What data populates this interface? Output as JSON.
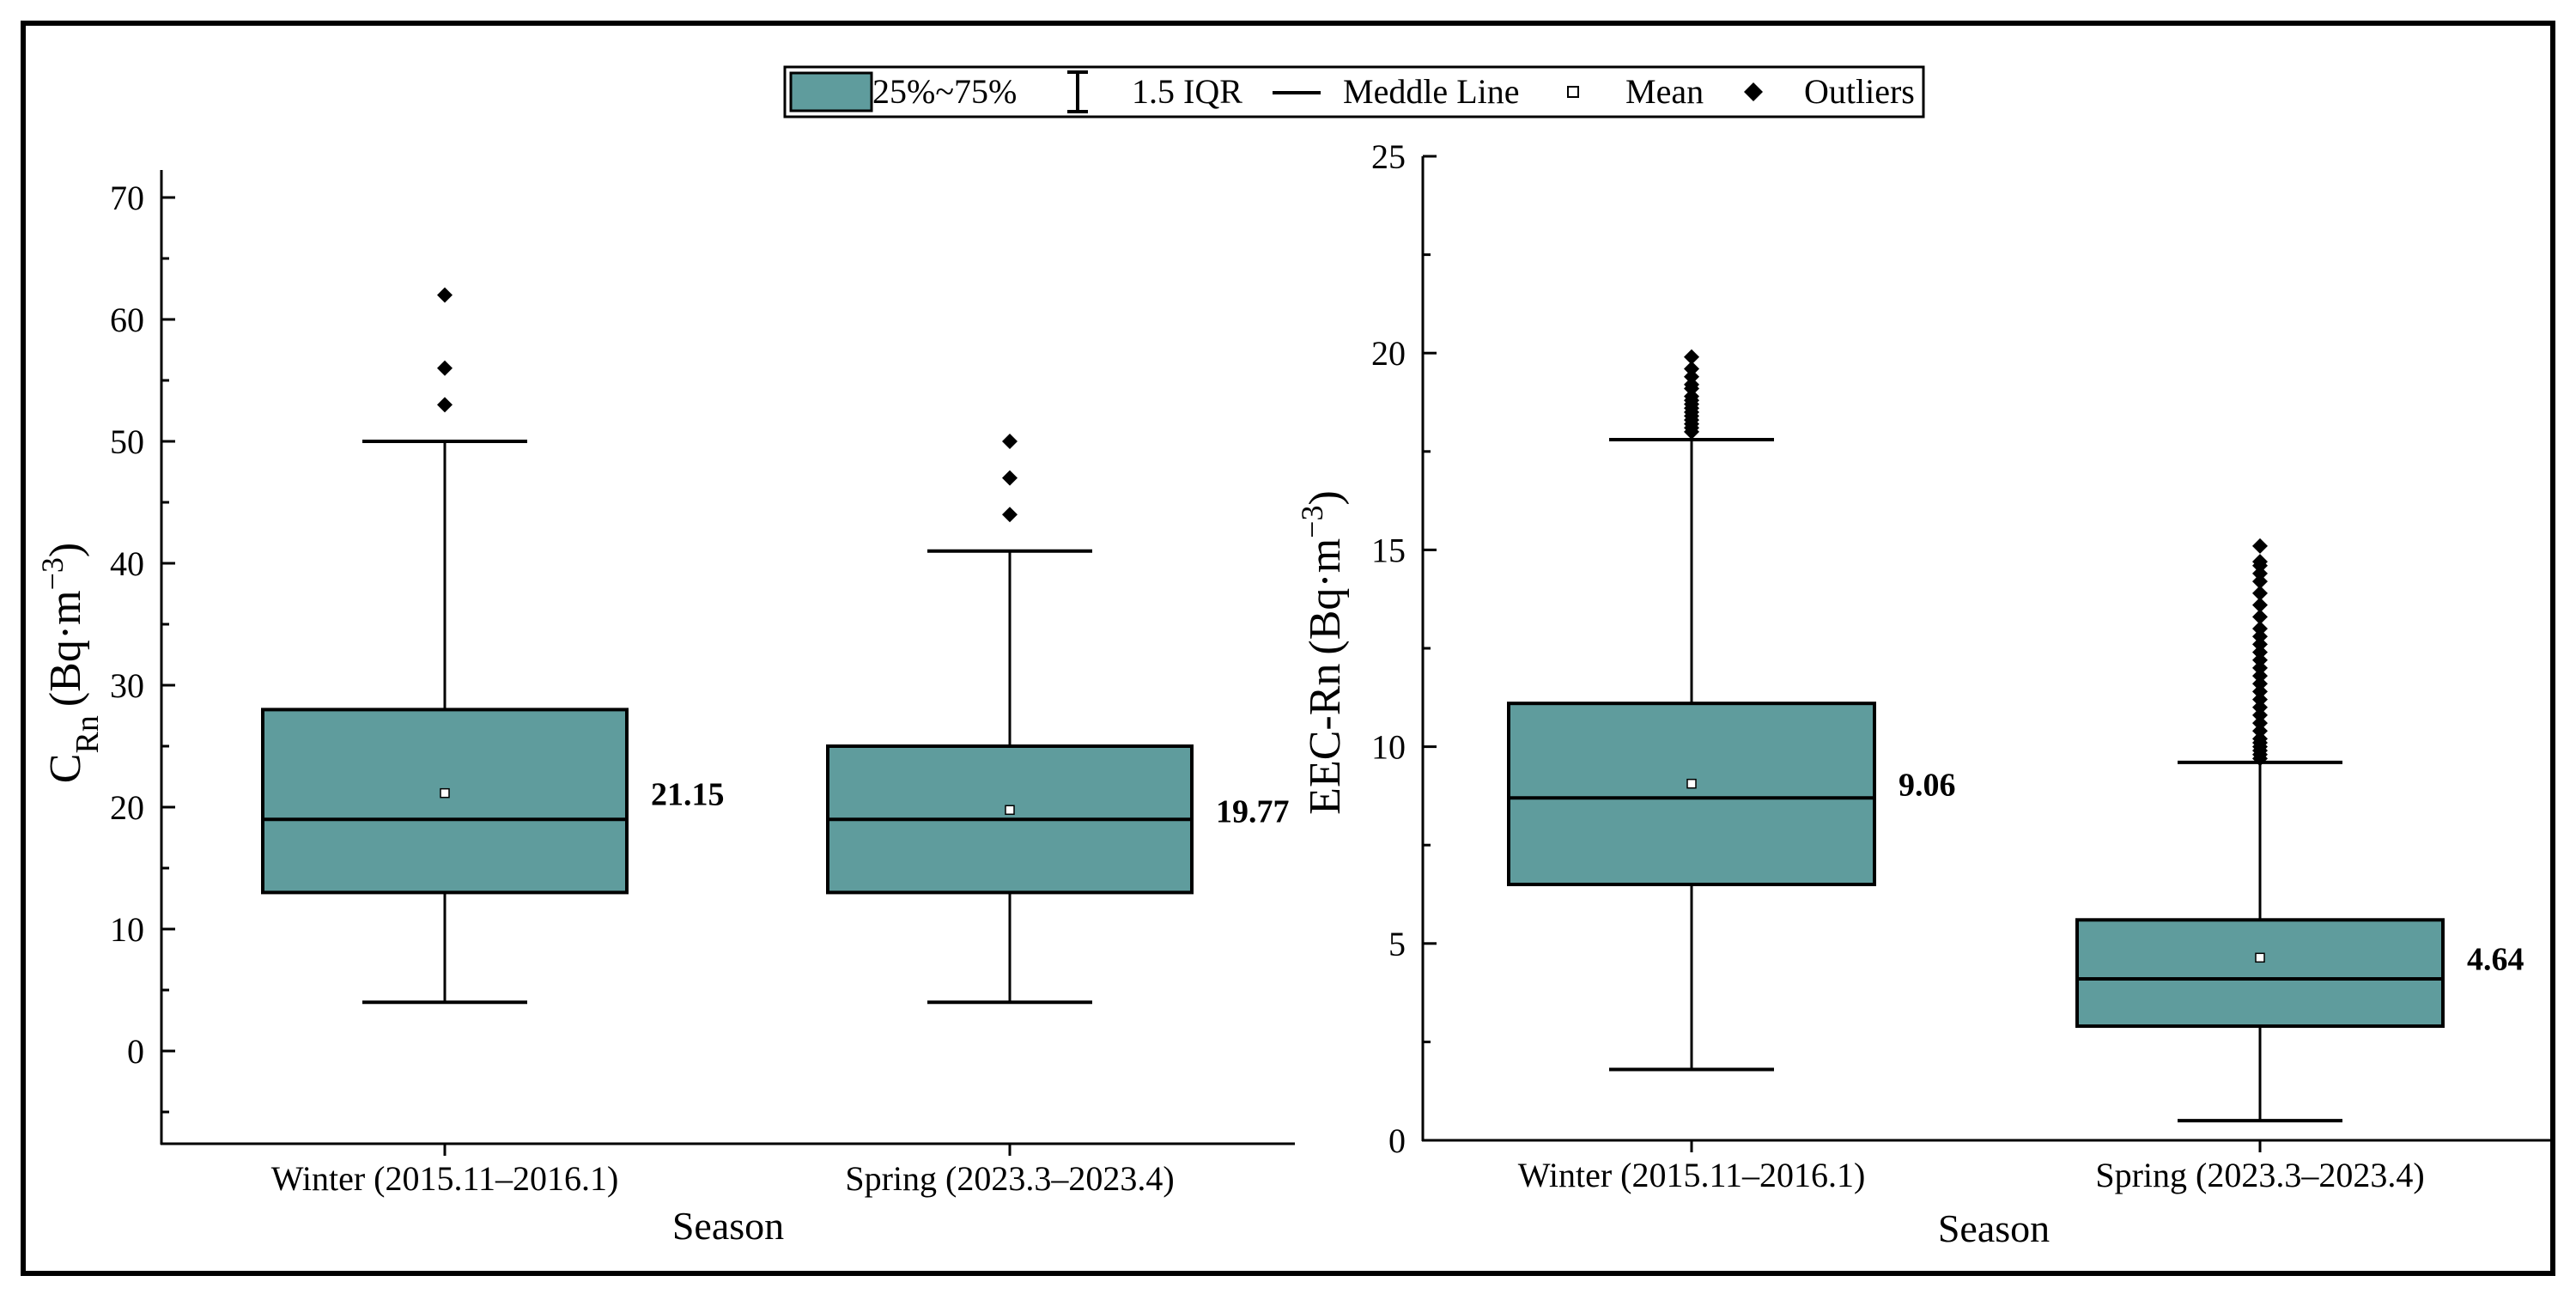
{
  "legend": {
    "items": [
      {
        "key": "box",
        "label": "25%~75%"
      },
      {
        "key": "iqr",
        "label": "1.5 IQR"
      },
      {
        "key": "median",
        "label": "Meddle Line"
      },
      {
        "key": "mean",
        "label": "Mean"
      },
      {
        "key": "outliers",
        "label": "Outliers"
      }
    ]
  },
  "colors": {
    "box_fill": "#5f9c9d",
    "stroke": "#000000",
    "background": "#ffffff"
  },
  "chart_data": [
    {
      "type": "box",
      "xlabel": "Season",
      "ylabel": {
        "main": "C",
        "subscript": "Rn",
        "unit_prefix": "(Bq·m",
        "unit_exponent": "−3",
        "unit_suffix": ")"
      },
      "ylim": [
        -8,
        72
      ],
      "yticks": [
        0,
        10,
        20,
        30,
        40,
        50,
        60,
        70
      ],
      "categories": [
        "Winter (2015.11–2016.1)",
        "Spring (2023.3–2023.4)"
      ],
      "boxes": [
        {
          "category": "Winter (2015.11–2016.1)",
          "whisker_low": 4,
          "q1": 13,
          "median": 19,
          "q3": 28,
          "whisker_high": 50,
          "mean": 21.15,
          "mean_label": "21.15",
          "outliers": [
            53,
            56,
            62
          ]
        },
        {
          "category": "Spring (2023.3–2023.4)",
          "whisker_low": 4,
          "q1": 13,
          "median": 19,
          "q3": 25,
          "whisker_high": 41,
          "mean": 19.77,
          "mean_label": "19.77",
          "outliers": [
            44,
            47,
            50
          ]
        }
      ]
    },
    {
      "type": "box",
      "xlabel": "Season",
      "ylabel": {
        "main": "EEC-Rn",
        "subscript": "",
        "unit_prefix": "(Bq·m",
        "unit_exponent": "−3",
        "unit_suffix": ")"
      },
      "ylim": [
        0,
        25
      ],
      "yticks": [
        0,
        5,
        10,
        15,
        20,
        25
      ],
      "categories": [
        "Winter (2015.11–2016.1)",
        "Spring (2023.3–2023.4)"
      ],
      "boxes": [
        {
          "category": "Winter (2015.11–2016.1)",
          "whisker_low": 1.8,
          "q1": 6.5,
          "median": 8.7,
          "q3": 11.1,
          "whisker_high": 17.8,
          "mean": 9.06,
          "mean_label": "9.06",
          "outliers": [
            18.0,
            18.1,
            18.2,
            18.3,
            18.4,
            18.5,
            18.6,
            18.7,
            18.8,
            18.9,
            19.1,
            19.2,
            19.4,
            19.6,
            19.9
          ]
        },
        {
          "category": "Spring (2023.3–2023.4)",
          "whisker_low": 0.5,
          "q1": 2.9,
          "median": 4.1,
          "q3": 5.6,
          "whisker_high": 9.6,
          "mean": 4.64,
          "mean_label": "4.64",
          "outliers": [
            9.7,
            9.8,
            9.9,
            10.0,
            10.1,
            10.2,
            10.4,
            10.6,
            10.8,
            11.0,
            11.2,
            11.4,
            11.6,
            11.8,
            12.0,
            12.2,
            12.4,
            12.6,
            12.8,
            13.0,
            13.3,
            13.6,
            13.9,
            14.2,
            14.4,
            14.6,
            14.7,
            15.1
          ]
        }
      ]
    }
  ]
}
